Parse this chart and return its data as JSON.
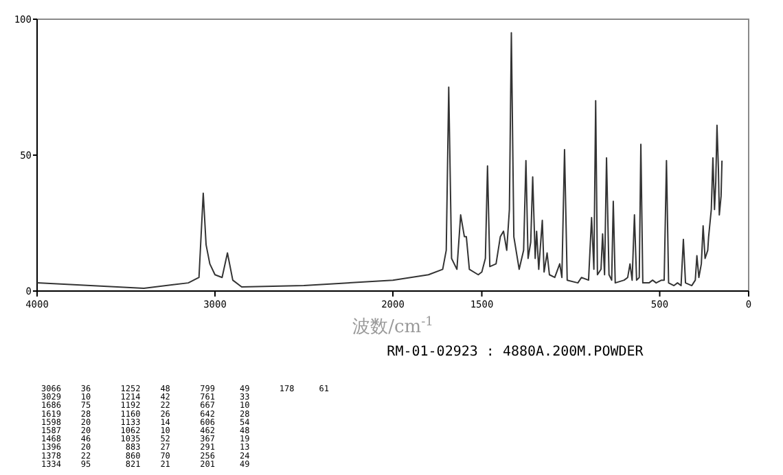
{
  "chart_data": {
    "type": "line",
    "xlabel": "波数/cm$^{-1}$",
    "subtitle": "RM-01-02923 : 4880A.200M.POWDER",
    "xlim": [
      4000,
      0
    ],
    "xticks": [
      4000,
      3000,
      2000,
      1500,
      500,
      0
    ],
    "ylim": [
      0,
      100
    ],
    "yticks": [
      0,
      50,
      100
    ],
    "grid": false,
    "series": [
      {
        "color": "#333333",
        "x": [
          4000,
          3700,
          3400,
          3150,
          3090,
          3066,
          3050,
          3029,
          3000,
          2960,
          2930,
          2900,
          2850,
          2500,
          2000,
          1800,
          1720,
          1700,
          1686,
          1670,
          1640,
          1619,
          1598,
          1587,
          1570,
          1520,
          1500,
          1480,
          1468,
          1455,
          1420,
          1396,
          1378,
          1360,
          1345,
          1334,
          1320,
          1290,
          1265,
          1252,
          1240,
          1225,
          1214,
          1200,
          1192,
          1180,
          1160,
          1150,
          1133,
          1120,
          1090,
          1062,
          1050,
          1035,
          1020,
          960,
          940,
          900,
          883,
          870,
          860,
          850,
          830,
          821,
          810,
          799,
          785,
          770,
          761,
          750,
          700,
          680,
          667,
          655,
          642,
          630,
          615,
          606,
          595,
          560,
          540,
          520,
          490,
          475,
          462,
          450,
          420,
          400,
          380,
          367,
          355,
          320,
          300,
          291,
          280,
          266,
          256,
          245,
          230,
          225,
          210,
          201,
          192,
          185,
          178,
          170,
          165,
          155,
          150
        ],
        "values": [
          3,
          2,
          1,
          3,
          5,
          36,
          17,
          10,
          6,
          5,
          14,
          4,
          1.5,
          2,
          4,
          6,
          8,
          15,
          75,
          12,
          8,
          28,
          20,
          20,
          8,
          6,
          7,
          12,
          46,
          9,
          10,
          20,
          22,
          15,
          30,
          95,
          20,
          8,
          15,
          48,
          12,
          18,
          42,
          12,
          22,
          8,
          26,
          7,
          14,
          6,
          5,
          10,
          5,
          52,
          4,
          3,
          5,
          4,
          27,
          8,
          70,
          6,
          8,
          21,
          6,
          49,
          6,
          4,
          33,
          3,
          4,
          5,
          10,
          4,
          28,
          4,
          5,
          54,
          3,
          3,
          4,
          3,
          4,
          4,
          48,
          3,
          2,
          3,
          2,
          19,
          3,
          2,
          4,
          13,
          5,
          10,
          24,
          12,
          15,
          20,
          30,
          49,
          30,
          40,
          61,
          45,
          28,
          35,
          48
        ]
      }
    ],
    "annotations": [
      "3066    36      1252    48      799     49      178     61",
      "3029    10      1214    42      761     33",
      "1686    75      1192    22      667     10",
      "1619    28      1160    26      642     28",
      "1598    20      1133    14      606     54",
      "1587    20      1062    10      462     48",
      "1468    46      1035    52      367     19",
      "1396    20       883    27      291     13",
      "1378    22       860    70      256     24",
      "1334    95       821    21      201     49"
    ]
  }
}
